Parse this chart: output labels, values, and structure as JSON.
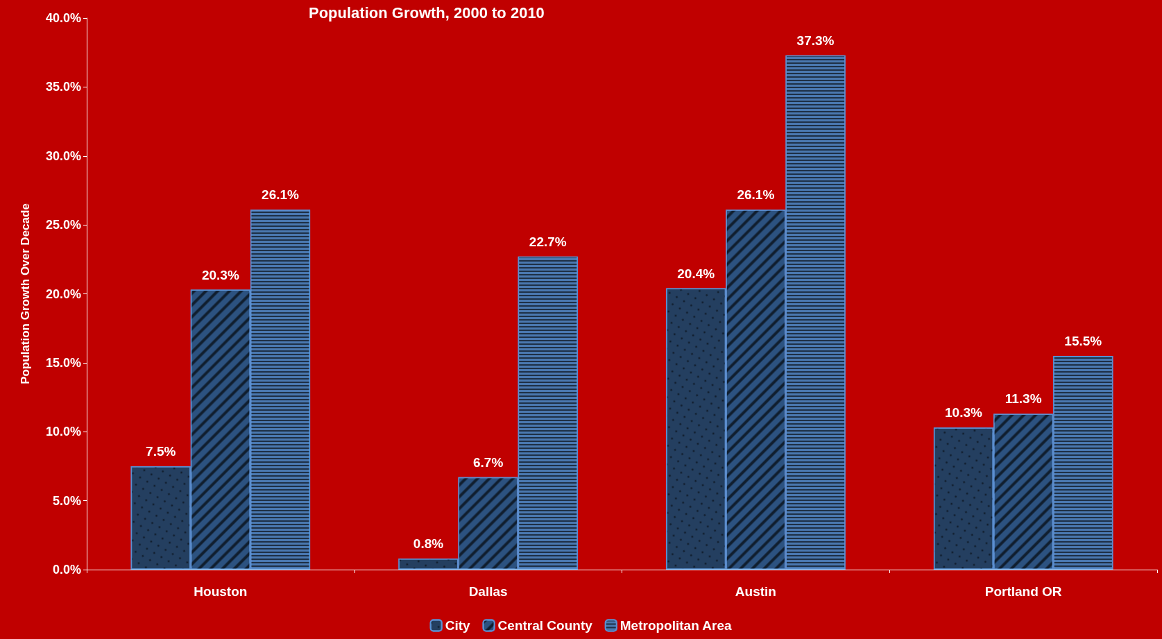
{
  "chart_data": {
    "type": "bar",
    "title": "Population Growth, 2000 to 2010",
    "ylabel": "Population Growth Over Decade",
    "categories": [
      "Houston",
      "Dallas",
      "Austin",
      "Portland OR"
    ],
    "series": [
      {
        "name": "City",
        "color": "#243f60",
        "values": [
          7.5,
          0.8,
          20.4,
          10.3
        ],
        "value_labels": [
          "7.5%",
          "0.8%",
          "20.4%",
          "10.3%"
        ]
      },
      {
        "name": "Central County",
        "color": "#2c5280",
        "values": [
          20.3,
          6.7,
          26.1,
          11.3
        ],
        "value_labels": [
          "20.3%",
          "6.7%",
          "26.1%",
          "11.3%"
        ]
      },
      {
        "name": "Metropolitan Area",
        "color": "#4a78b0",
        "values": [
          26.1,
          22.7,
          37.3,
          15.5
        ],
        "value_labels": [
          "26.1%",
          "22.7%",
          "37.3%",
          "15.5%"
        ]
      }
    ],
    "ylim": [
      0,
      40
    ],
    "yticks": [
      {
        "value": 0,
        "label": "0.0%"
      },
      {
        "value": 5,
        "label": "5.0%"
      },
      {
        "value": 10,
        "label": "10.0%"
      },
      {
        "value": 15,
        "label": "15.0%"
      },
      {
        "value": 20,
        "label": "20.0%"
      },
      {
        "value": 25,
        "label": "25.0%"
      },
      {
        "value": 30,
        "label": "30.0%"
      },
      {
        "value": 35,
        "label": "35.0%"
      },
      {
        "value": 40,
        "label": "40.0%"
      }
    ],
    "grid": false,
    "legend": "bottom"
  }
}
